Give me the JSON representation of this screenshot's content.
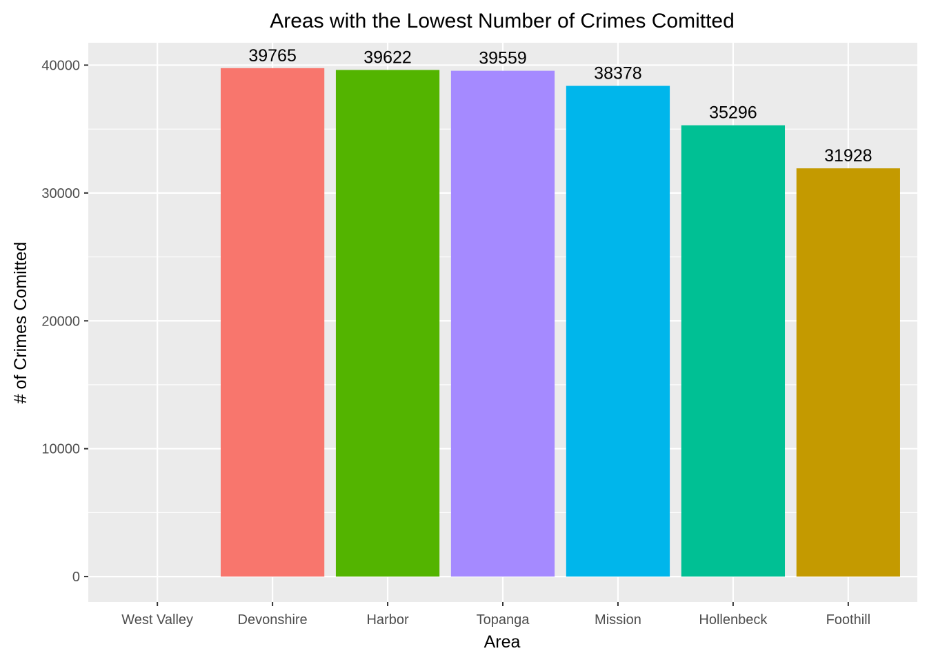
{
  "chart_data": {
    "type": "bar",
    "title": "Areas with the Lowest Number of Crimes Comitted",
    "xlabel": "Area",
    "ylabel": "# of Crimes Comitted",
    "categories": [
      "West Valley",
      "Devonshire",
      "Harbor",
      "Topanga",
      "Mission",
      "Hollenbeck",
      "Foothill"
    ],
    "values": [
      null,
      39765,
      39622,
      39559,
      38378,
      35296,
      31928
    ],
    "data_labels": [
      "",
      "39765",
      "39622",
      "39559",
      "38378",
      "35296",
      "31928"
    ],
    "colors": [
      "#E76BF3",
      "#F8766D",
      "#53B400",
      "#A58AFF",
      "#00B6EB",
      "#00C094",
      "#C49A00"
    ],
    "ylim": [
      -1990,
      41750
    ],
    "yticks": [
      0,
      10000,
      20000,
      30000,
      40000
    ],
    "ytick_labels": [
      "0",
      "10000",
      "20000",
      "30000",
      "40000"
    ],
    "grid": true,
    "legend": "none",
    "panel_background": "#EBEBEB",
    "grid_color": "#FFFFFF"
  }
}
